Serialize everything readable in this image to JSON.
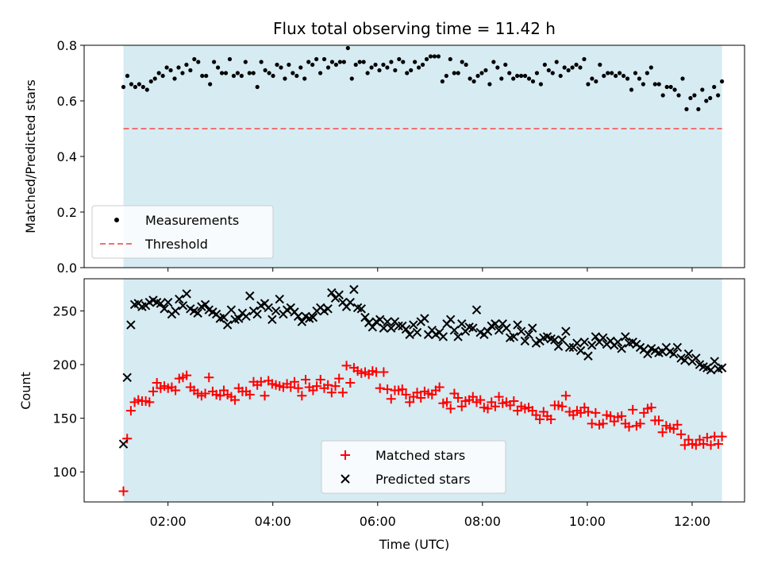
{
  "chart_data": [
    {
      "type": "scatter",
      "title": "Flux total observing time = 11.42 h",
      "xlabel": "",
      "ylabel": "Matched/Predicted stars",
      "xlim_hours": [
        0.4,
        13.0
      ],
      "ylim": [
        0,
        0.8
      ],
      "yticks": [
        0.0,
        0.2,
        0.4,
        0.6,
        0.8
      ],
      "ytick_labels": [
        "0.0",
        "0.2",
        "0.4",
        "0.6",
        "0.8"
      ],
      "observing_span_hours": [
        1.15,
        12.57
      ],
      "threshold": 0.5,
      "legend": [
        "Measurements",
        "Threshold"
      ],
      "legend_location": "lower-left",
      "colors": {
        "points": "#000000",
        "threshold": "#f07070",
        "span": "#add8e6"
      },
      "measurements": [
        0.65,
        0.69,
        0.66,
        0.65,
        0.66,
        0.65,
        0.64,
        0.67,
        0.68,
        0.7,
        0.69,
        0.72,
        0.71,
        0.68,
        0.72,
        0.7,
        0.73,
        0.71,
        0.75,
        0.74,
        0.69,
        0.69,
        0.66,
        0.74,
        0.72,
        0.7,
        0.7,
        0.75,
        0.69,
        0.7,
        0.69,
        0.74,
        0.7,
        0.7,
        0.65,
        0.74,
        0.71,
        0.7,
        0.69,
        0.73,
        0.72,
        0.68,
        0.73,
        0.7,
        0.69,
        0.72,
        0.68,
        0.74,
        0.73,
        0.75,
        0.7,
        0.75,
        0.72,
        0.74,
        0.73,
        0.74,
        0.74,
        0.79,
        0.68,
        0.73,
        0.74,
        0.74,
        0.7,
        0.72,
        0.73,
        0.71,
        0.73,
        0.72,
        0.74,
        0.71,
        0.75,
        0.74,
        0.7,
        0.71,
        0.74,
        0.72,
        0.73,
        0.75,
        0.76,
        0.76,
        0.76,
        0.67,
        0.69,
        0.75,
        0.7,
        0.7,
        0.74,
        0.73,
        0.68,
        0.67,
        0.69,
        0.7,
        0.71,
        0.66,
        0.74,
        0.72,
        0.68,
        0.73,
        0.7,
        0.68,
        0.69,
        0.69,
        0.69,
        0.68,
        0.67,
        0.7,
        0.66,
        0.73,
        0.71,
        0.7,
        0.74,
        0.69,
        0.72,
        0.71,
        0.72,
        0.73,
        0.72,
        0.75,
        0.66,
        0.68,
        0.67,
        0.73,
        0.69,
        0.7,
        0.7,
        0.69,
        0.7,
        0.69,
        0.68,
        0.64,
        0.7,
        0.68,
        0.66,
        0.7,
        0.72,
        0.66,
        0.66,
        0.62,
        0.65,
        0.65,
        0.64,
        0.62,
        0.68,
        0.57,
        0.61,
        0.62,
        0.57,
        0.64,
        0.6,
        0.61,
        0.65,
        0.62,
        0.67
      ]
    },
    {
      "type": "scatter",
      "title": "",
      "xlabel": "Time (UTC)",
      "ylabel": "Count",
      "xlim_hours": [
        0.4,
        13.0
      ],
      "ylim": [
        72,
        280
      ],
      "yticks": [
        100,
        150,
        200,
        250
      ],
      "ytick_labels": [
        "100",
        "150",
        "200",
        "250"
      ],
      "xticks_hours": [
        2,
        4,
        6,
        8,
        10,
        12
      ],
      "xtick_labels": [
        "02:00",
        "04:00",
        "06:00",
        "08:00",
        "10:00",
        "12:00"
      ],
      "observing_span_hours": [
        1.15,
        12.57
      ],
      "legend": [
        "Matched stars",
        "Predicted stars"
      ],
      "legend_location": "lower-center",
      "colors": {
        "matched": "#ff0000",
        "predicted": "#000000",
        "span": "#add8e6"
      },
      "series": [
        {
          "name": "Matched stars",
          "values": [
            82,
            131,
            157,
            165,
            167,
            166,
            166,
            165,
            175,
            183,
            178,
            180,
            178,
            179,
            176,
            187,
            188,
            190,
            179,
            176,
            173,
            171,
            173,
            188,
            175,
            172,
            171,
            176,
            172,
            170,
            167,
            178,
            175,
            175,
            172,
            184,
            181,
            184,
            171,
            185,
            182,
            181,
            180,
            179,
            182,
            179,
            184,
            178,
            171,
            186,
            179,
            176,
            180,
            186,
            178,
            181,
            174,
            180,
            187,
            174,
            199,
            183,
            197,
            194,
            192,
            193,
            191,
            194,
            193,
            178,
            193,
            177,
            168,
            176,
            176,
            177,
            172,
            165,
            170,
            174,
            169,
            175,
            173,
            172,
            176,
            179,
            164,
            165,
            159,
            173,
            169,
            161,
            166,
            167,
            170,
            165,
            167,
            160,
            159,
            165,
            161,
            170,
            164,
            165,
            162,
            166,
            157,
            161,
            159,
            160,
            157,
            153,
            149,
            156,
            152,
            149,
            162,
            162,
            161,
            171,
            156,
            153,
            157,
            155,
            160,
            156,
            145,
            155,
            144,
            145,
            153,
            152,
            147,
            151,
            152,
            145,
            142,
            158,
            143,
            145,
            155,
            159,
            160,
            148,
            148,
            137,
            143,
            141,
            140,
            144,
            135,
            125,
            130,
            126,
            125,
            130,
            126,
            132,
            125,
            133,
            126,
            133
          ]
        },
        {
          "name": "Predicted stars",
          "values": [
            126,
            188,
            237,
            256,
            257,
            254,
            255,
            258,
            260,
            258,
            257,
            252,
            258,
            247,
            250,
            261,
            255,
            266,
            252,
            250,
            248,
            254,
            256,
            251,
            249,
            247,
            243,
            244,
            237,
            251,
            242,
            243,
            248,
            245,
            264,
            250,
            247,
            255,
            257,
            253,
            242,
            250,
            261,
            247,
            251,
            253,
            249,
            245,
            240,
            245,
            243,
            244,
            250,
            253,
            250,
            252,
            267,
            262,
            265,
            258,
            254,
            258,
            270,
            253,
            252,
            244,
            239,
            235,
            240,
            242,
            234,
            240,
            234,
            240,
            236,
            236,
            233,
            228,
            237,
            230,
            240,
            243,
            228,
            232,
            228,
            230,
            226,
            238,
            242,
            232,
            226,
            238,
            231,
            235,
            234,
            251,
            230,
            228,
            231,
            236,
            238,
            232,
            238,
            234,
            225,
            226,
            237,
            231,
            222,
            228,
            234,
            220,
            222,
            225,
            226,
            224,
            223,
            217,
            223,
            231,
            216,
            216,
            220,
            213,
            221,
            208,
            218,
            226,
            221,
            225,
            219,
            222,
            218,
            221,
            215,
            226,
            220,
            221,
            219,
            216,
            214,
            210,
            215,
            213,
            211,
            212,
            216,
            212,
            210,
            216,
            206,
            204,
            210,
            203,
            206,
            200,
            198,
            197,
            195,
            203,
            196,
            197
          ]
        }
      ]
    }
  ]
}
